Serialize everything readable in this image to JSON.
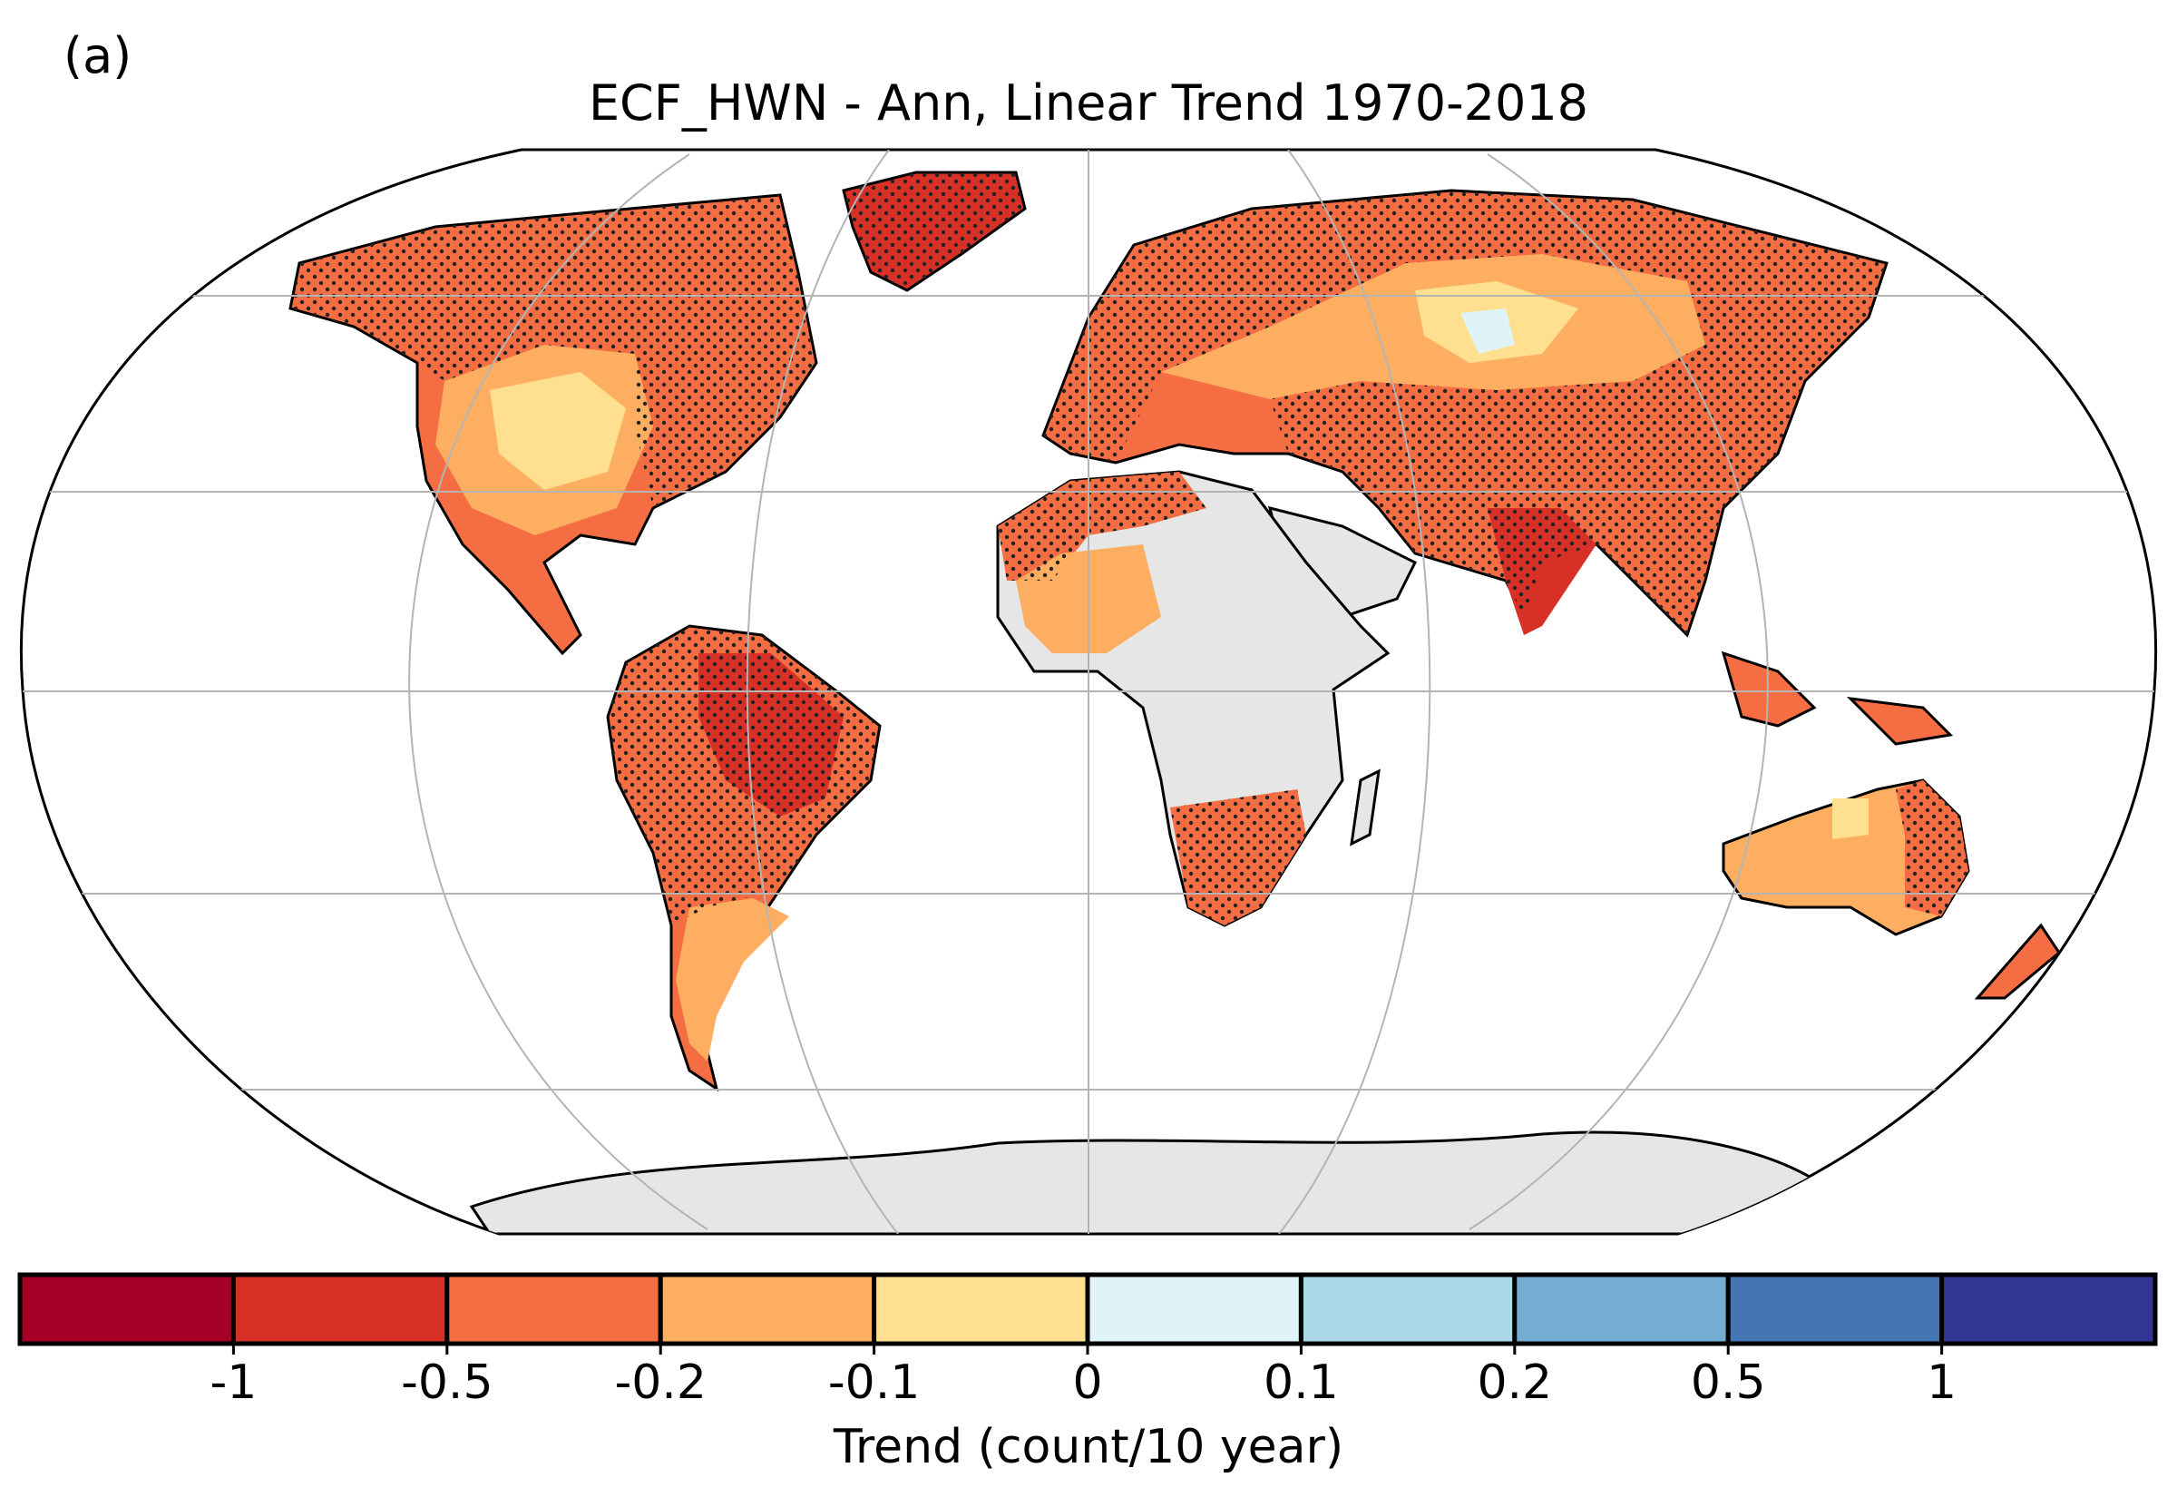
{
  "panel_label": "(a)",
  "title": "ECF_HWN - Ann, Linear Trend 1970-2018",
  "colorbar": {
    "label": "Trend (count/10 year)",
    "ticks": [
      "-1",
      "-0.5",
      "-0.2",
      "-0.1",
      "0",
      "0.1",
      "0.2",
      "0.5",
      "1"
    ],
    "colors": [
      "#a50026",
      "#d73027",
      "#f46d43",
      "#fdae61",
      "#fee090",
      "#e0f3f8",
      "#abd9e9",
      "#74add1",
      "#4575b4",
      "#313695"
    ]
  },
  "map": {
    "projection": "Robinson",
    "graticule": true,
    "missing_color": "#e6e6e6",
    "stippling": "significant trend"
  }
}
